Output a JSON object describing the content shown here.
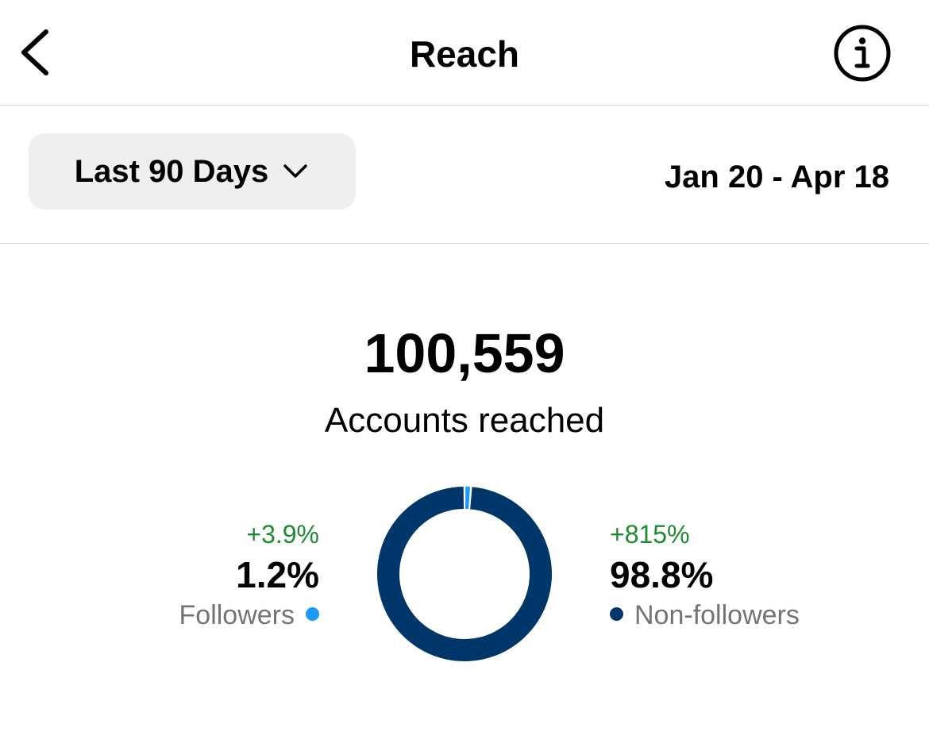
{
  "header": {
    "title": "Reach"
  },
  "filter": {
    "range_label": "Last 90 Days",
    "date_range": "Jan 20 - Apr 18"
  },
  "summary": {
    "total": "100,559",
    "total_label": "Accounts reached"
  },
  "segments": {
    "followers": {
      "change": "+3.9%",
      "percent": "1.2%",
      "label": "Followers",
      "color": "#1b9af7"
    },
    "non_followers": {
      "change": "+815%",
      "percent": "98.8%",
      "label": "Non-followers",
      "color": "#00376b"
    }
  },
  "colors": {
    "positive_change": "#1e8a32",
    "secondary_text": "#737373",
    "divider": "#dbdbdb",
    "select_bg": "#efefef"
  },
  "chart_data": {
    "type": "pie",
    "categories": [
      "Followers",
      "Non-followers"
    ],
    "values": [
      1.2,
      98.8
    ],
    "colors": [
      "#1b9af7",
      "#00376b"
    ]
  },
  "icons": {
    "back": "chevron-left-icon",
    "info": "info-icon",
    "dropdown": "chevron-down-icon"
  }
}
